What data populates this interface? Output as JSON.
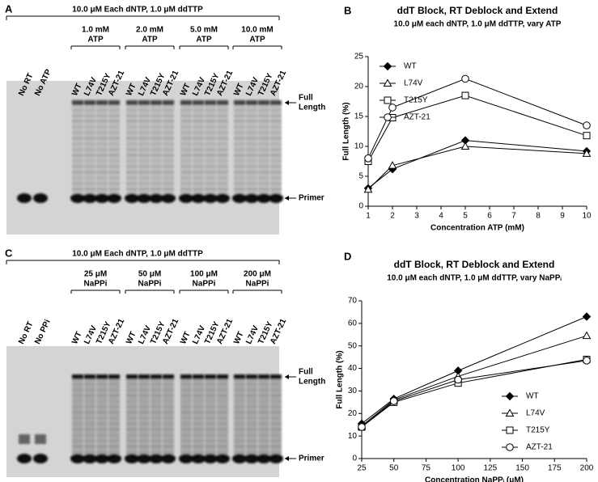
{
  "panel_letters": [
    "A",
    "B",
    "C",
    "D"
  ],
  "gels": [
    {
      "header": "10.0 μM Each dNTP, 1.0 μM ddTTP",
      "lanes_pre": [
        "No RT",
        "No ATP"
      ],
      "groups": [
        {
          "conc": "1.0 mM",
          "agent": "ATP",
          "lanes": [
            "WT",
            "L74V",
            "T215Y",
            "AZT-21"
          ]
        },
        {
          "conc": "2.0 mM",
          "agent": "ATP",
          "lanes": [
            "WT",
            "L74V",
            "T215Y",
            "AZT-21"
          ]
        },
        {
          "conc": "5.0 mM",
          "agent": "ATP",
          "lanes": [
            "WT",
            "L74V",
            "T215Y",
            "AZT-21"
          ]
        },
        {
          "conc": "10.0 mM",
          "agent": "ATP",
          "lanes": [
            "WT",
            "L74V",
            "T215Y",
            "AZT-21"
          ]
        }
      ],
      "full_length": [
        "Full",
        "Length"
      ],
      "primer": "Primer"
    },
    {
      "header": "10.0 μM Each dNTP, 1.0 μM ddTTP",
      "lanes_pre": [
        "No RT",
        "No PPi"
      ],
      "groups": [
        {
          "conc": "25 μM",
          "agent": "NaPPi",
          "lanes": [
            "WT",
            "L74V",
            "T215Y",
            "AZT-21"
          ]
        },
        {
          "conc": "50 μM",
          "agent": "NaPPi",
          "lanes": [
            "WT",
            "L74V",
            "T215Y",
            "AZT-21"
          ]
        },
        {
          "conc": "100 μM",
          "agent": "NaPPi",
          "lanes": [
            "WT",
            "L74V",
            "T215Y",
            "AZT-21"
          ]
        },
        {
          "conc": "200 μM",
          "agent": "NaPPi",
          "lanes": [
            "WT",
            "L74V",
            "T215Y",
            "AZT-21"
          ]
        }
      ],
      "full_length": [
        "Full",
        "Length"
      ],
      "primer": "Primer"
    }
  ],
  "chart_data": [
    {
      "type": "line",
      "title": "ddT Block, RT Deblock and Extend",
      "subtitle": "10.0 μM each dNTP, 1.0 μM ddTTP, vary ATP",
      "x_label": "Concentration ATP (mM)",
      "y_label": "Full Length (%)",
      "x": [
        1,
        2,
        5,
        10
      ],
      "xlim": [
        1,
        10
      ],
      "xticks": [
        1,
        2,
        3,
        4,
        5,
        6,
        7,
        8,
        9,
        10
      ],
      "ylim": [
        0,
        25
      ],
      "yticks": [
        0,
        5,
        10,
        15,
        20,
        25
      ],
      "legend": "upper left",
      "series": [
        {
          "name": "WT",
          "color": "#000000",
          "marker": "diamond",
          "marker_fill": "#000000",
          "values": [
            3,
            6.2,
            11,
            9.2
          ]
        },
        {
          "name": "L74V",
          "color": "#000000",
          "marker": "triangle",
          "marker_fill": "#ffffff",
          "values": [
            2.8,
            6.8,
            10,
            8.8
          ]
        },
        {
          "name": "T215Y",
          "color": "#000000",
          "marker": "square",
          "marker_fill": "#ffffff",
          "values": [
            7.5,
            14.8,
            18.5,
            11.8
          ]
        },
        {
          "name": "AZT-21",
          "color": "#000000",
          "marker": "circle",
          "marker_fill": "#ffffff",
          "values": [
            8,
            16.5,
            21.3,
            13.5
          ]
        }
      ]
    },
    {
      "type": "line",
      "title": "ddT Block, RT Deblock and Extend",
      "subtitle": "10.0 μM each dNTP, 1.0 μM ddTTP, vary NaPPᵢ",
      "x_label": "Concentration NaPPᵢ (μM)",
      "y_label": "Full Length (%)",
      "x": [
        25,
        50,
        100,
        200
      ],
      "xlim": [
        25,
        200
      ],
      "xticks": [
        25,
        50,
        75,
        100,
        125,
        150,
        175,
        200
      ],
      "ylim": [
        0,
        70
      ],
      "yticks": [
        0,
        10,
        20,
        30,
        40,
        50,
        60,
        70
      ],
      "legend": "lower right",
      "series": [
        {
          "name": "WT",
          "color": "#000000",
          "marker": "diamond",
          "marker_fill": "#000000",
          "values": [
            15.5,
            26.5,
            39,
            63
          ]
        },
        {
          "name": "L74V",
          "color": "#000000",
          "marker": "triangle",
          "marker_fill": "#ffffff",
          "values": [
            14.5,
            26,
            36.5,
            54.5
          ]
        },
        {
          "name": "T215Y",
          "color": "#000000",
          "marker": "square",
          "marker_fill": "#ffffff",
          "values": [
            14,
            25,
            33.5,
            44
          ]
        },
        {
          "name": "AZT-21",
          "color": "#000000",
          "marker": "circle",
          "marker_fill": "#ffffff",
          "values": [
            14,
            25.5,
            35,
            43.5
          ]
        }
      ]
    }
  ]
}
